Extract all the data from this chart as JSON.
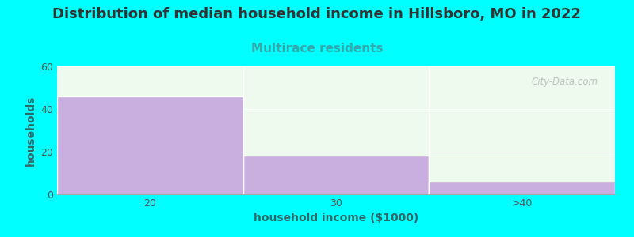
{
  "title": "Distribution of median household income in Hillsboro, MO in 2022",
  "subtitle": "Multirace residents",
  "xlabel": "household income ($1000)",
  "ylabel": "households",
  "categories": [
    "20",
    "30",
    ">40"
  ],
  "values": [
    46,
    18,
    6
  ],
  "bar_color": "#c9aee0",
  "bar_edge_color": "#c9aee0",
  "background_color": "#00ffff",
  "plot_bg_color": "#edfaed",
  "ylim": [
    0,
    60
  ],
  "yticks": [
    0,
    20,
    40,
    60
  ],
  "title_color": "#333333",
  "subtitle_color": "#33aaaa",
  "axis_label_color": "#336666",
  "tick_color": "#555555",
  "title_fontsize": 13,
  "subtitle_fontsize": 11,
  "xlabel_fontsize": 10,
  "ylabel_fontsize": 10,
  "watermark": "City-Data.com",
  "watermark_color": "#b0b0b0"
}
